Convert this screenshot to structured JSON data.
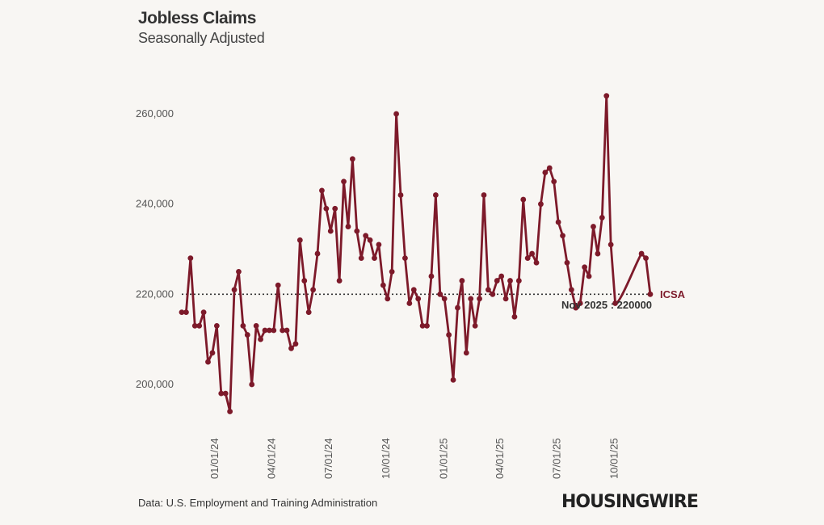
{
  "header": {
    "title": "Jobless Claims",
    "subtitle": "Seasonally Adjusted"
  },
  "footer": {
    "source": "Data: U.S. Employment and Training Administration",
    "logo": "HOUSINGWIRE"
  },
  "chart_data": {
    "type": "line",
    "title": "Jobless Claims",
    "subtitle": "Seasonally Adjusted",
    "xlabel": "",
    "ylabel": "",
    "ylim": [
      190000,
      270000
    ],
    "grid": false,
    "color": "#7d1a2a",
    "y_ticks": [
      "200,000",
      "220,000",
      "240,000",
      "260,000"
    ],
    "y_tick_values": [
      200000,
      220000,
      240000,
      260000
    ],
    "x_ticks": [
      "01/01/24",
      "04/01/24",
      "07/01/24",
      "10/01/24",
      "01/01/25",
      "04/01/25",
      "07/01/25",
      "10/01/25"
    ],
    "x_tick_dates": [
      "2024-01-01",
      "2024-04-01",
      "2024-07-01",
      "2024-10-01",
      "2025-01-01",
      "2025-04-01",
      "2025-07-01",
      "2025-10-01"
    ],
    "series": [
      {
        "name": "ICSA",
        "x": [
          "2023-11-04",
          "2023-11-11",
          "2023-11-18",
          "2023-11-25",
          "2023-12-02",
          "2023-12-09",
          "2023-12-16",
          "2023-12-23",
          "2023-12-30",
          "2024-01-06",
          "2024-01-13",
          "2024-01-20",
          "2024-01-27",
          "2024-02-03",
          "2024-02-10",
          "2024-02-17",
          "2024-02-24",
          "2024-03-02",
          "2024-03-09",
          "2024-03-16",
          "2024-03-23",
          "2024-03-30",
          "2024-04-06",
          "2024-04-13",
          "2024-04-20",
          "2024-04-27",
          "2024-05-04",
          "2024-05-11",
          "2024-05-18",
          "2024-05-25",
          "2024-06-01",
          "2024-06-08",
          "2024-06-15",
          "2024-06-22",
          "2024-06-29",
          "2024-07-06",
          "2024-07-13",
          "2024-07-20",
          "2024-07-27",
          "2024-08-03",
          "2024-08-10",
          "2024-08-17",
          "2024-08-24",
          "2024-08-31",
          "2024-09-07",
          "2024-09-14",
          "2024-09-21",
          "2024-09-28",
          "2024-10-05",
          "2024-10-12",
          "2024-10-19",
          "2024-10-26",
          "2024-11-02",
          "2024-11-09",
          "2024-11-16",
          "2024-11-23",
          "2024-11-30",
          "2024-12-07",
          "2024-12-14",
          "2024-12-21",
          "2024-12-28",
          "2025-01-04",
          "2025-01-11",
          "2025-01-18",
          "2025-01-25",
          "2025-02-01",
          "2025-02-08",
          "2025-02-15",
          "2025-02-22",
          "2025-03-01",
          "2025-03-08",
          "2025-03-15",
          "2025-03-22",
          "2025-03-29",
          "2025-04-05",
          "2025-04-12",
          "2025-04-19",
          "2025-04-26",
          "2025-05-03",
          "2025-05-10",
          "2025-05-17",
          "2025-05-24",
          "2025-05-31",
          "2025-06-07",
          "2025-06-14",
          "2025-06-21",
          "2025-06-28",
          "2025-07-05",
          "2025-07-12",
          "2025-07-19",
          "2025-07-26",
          "2025-08-02",
          "2025-08-09",
          "2025-08-16",
          "2025-08-23",
          "2025-08-30",
          "2025-09-06",
          "2025-09-13",
          "2025-09-20",
          "2025-09-27",
          "2025-11-08",
          "2025-11-15",
          "2025-11-22"
        ],
        "values": [
          216000,
          216000,
          228000,
          213000,
          213000,
          216000,
          205000,
          207000,
          213000,
          198000,
          198000,
          194000,
          221000,
          225000,
          213000,
          211000,
          200000,
          213000,
          210000,
          212000,
          212000,
          212000,
          222000,
          212000,
          212000,
          208000,
          209000,
          232000,
          223000,
          216000,
          221000,
          229000,
          243000,
          239000,
          234000,
          239000,
          223000,
          245000,
          235000,
          250000,
          234000,
          228000,
          233000,
          232000,
          228000,
          231000,
          222000,
          219000,
          225000,
          260000,
          242000,
          228000,
          218000,
          221000,
          219000,
          213000,
          213000,
          224000,
          242000,
          220000,
          219000,
          211000,
          201000,
          217000,
          223000,
          207000,
          219000,
          213000,
          219000,
          242000,
          221000,
          220000,
          223000,
          224000,
          219000,
          223000,
          215000,
          223000,
          241000,
          228000,
          229000,
          227000,
          240000,
          247000,
          248000,
          245000,
          236000,
          233000,
          227000,
          221000,
          217000,
          218000,
          226000,
          224000,
          235000,
          229000,
          237000,
          264000,
          231000,
          218000,
          229000,
          228000,
          220000
        ]
      }
    ],
    "reference_line": {
      "value": 220000,
      "style": "dotted"
    },
    "annotation": "Nov 2025 : 220000",
    "end_label": "ICSA"
  }
}
